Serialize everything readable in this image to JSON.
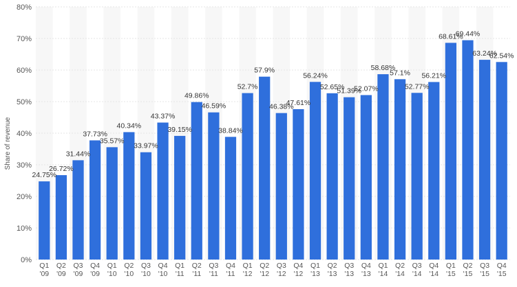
{
  "chart_data": {
    "type": "bar",
    "title": "",
    "xlabel": "",
    "ylabel": "Share of revenue",
    "unit": "%",
    "ylim": [
      0,
      80
    ],
    "yticks": [
      0,
      10,
      20,
      30,
      40,
      50,
      60,
      70,
      80
    ],
    "ytick_labels": [
      "0%",
      "10%",
      "20%",
      "30%",
      "40%",
      "50%",
      "60%",
      "70%",
      "80%"
    ],
    "grid": true,
    "bar_color": "#2f6fdc",
    "categories": [
      [
        "Q1",
        "'09"
      ],
      [
        "Q2",
        "'09"
      ],
      [
        "Q3",
        "'09"
      ],
      [
        "Q4",
        "'09"
      ],
      [
        "Q1",
        "'10"
      ],
      [
        "Q2",
        "'10"
      ],
      [
        "Q3",
        "'10"
      ],
      [
        "Q4",
        "'10"
      ],
      [
        "Q1",
        "'11"
      ],
      [
        "Q2",
        "'11"
      ],
      [
        "Q3",
        "'11"
      ],
      [
        "Q4",
        "'11"
      ],
      [
        "Q1",
        "'12"
      ],
      [
        "Q2",
        "'12"
      ],
      [
        "Q3",
        "'12"
      ],
      [
        "Q4",
        "'12"
      ],
      [
        "Q1",
        "'13"
      ],
      [
        "Q2",
        "'13"
      ],
      [
        "Q3",
        "'13"
      ],
      [
        "Q4",
        "'13"
      ],
      [
        "Q1",
        "'14"
      ],
      [
        "Q2",
        "'14"
      ],
      [
        "Q3",
        "'14"
      ],
      [
        "Q4",
        "'14"
      ],
      [
        "Q1",
        "'15"
      ],
      [
        "Q2",
        "'15"
      ],
      [
        "Q3",
        "'15"
      ],
      [
        "Q4",
        "'15"
      ]
    ],
    "values": [
      24.75,
      26.72,
      31.44,
      37.73,
      35.57,
      40.34,
      33.97,
      43.37,
      39.15,
      49.86,
      46.59,
      38.84,
      52.7,
      57.9,
      46.38,
      47.61,
      56.24,
      52.65,
      51.39,
      52.07,
      58.68,
      57.1,
      52.77,
      56.21,
      68.61,
      69.44,
      63.24,
      62.54
    ],
    "labels": [
      "24.75%",
      "26.72%",
      "31.44%",
      "37.73%",
      "35.57%",
      "40.34%",
      "33.97%",
      "43.37%",
      "39.15%",
      "49.86%",
      "46.59%",
      "38.84%",
      "52.7%",
      "57.9%",
      "46.38%",
      "47.61%",
      "56.24%",
      "52.65%",
      "51.39%",
      "52.07%",
      "58.68%",
      "57.1%",
      "52.77%",
      "56.21%",
      "68.61%",
      "69.44%",
      "63.24%",
      "62.54%"
    ]
  }
}
